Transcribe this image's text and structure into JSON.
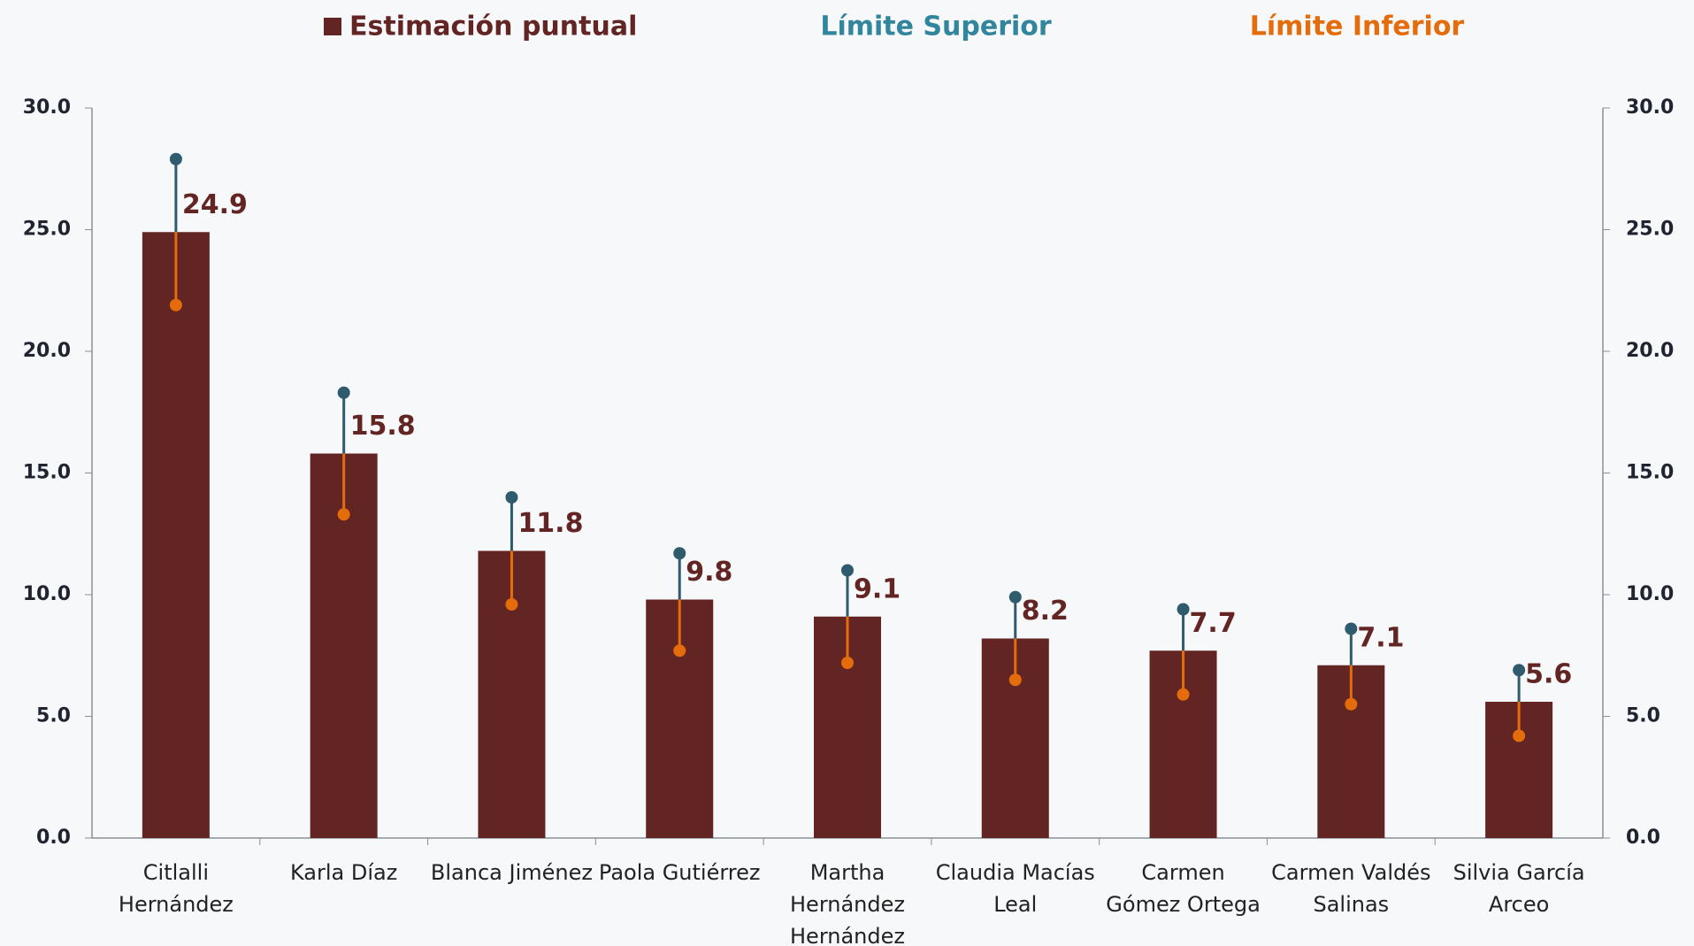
{
  "chart_data": {
    "type": "bar",
    "categories": [
      "Citlalli Hernández",
      "Karla Díaz",
      "Blanca Jiménez",
      "Paola Gutiérrez",
      "Martha Hernández Hernández",
      "Claudia Macías Leal",
      "Carmen Gómez Ortega",
      "Carmen Valdés Salinas",
      "Silvia García Arceo"
    ],
    "series": [
      {
        "name": "Estimación puntual",
        "color": "#632523",
        "values": [
          24.9,
          15.8,
          11.8,
          9.8,
          9.1,
          8.2,
          7.7,
          7.1,
          5.6
        ]
      },
      {
        "name": "Límite Superior",
        "color": "#31859c",
        "values": [
          27.9,
          18.3,
          14.0,
          11.7,
          11.0,
          9.9,
          9.4,
          8.6,
          6.9
        ]
      },
      {
        "name": "Límite Inferior",
        "color": "#e46c0a",
        "values": [
          21.9,
          13.3,
          9.6,
          7.7,
          7.2,
          6.5,
          5.9,
          5.5,
          4.2
        ]
      }
    ],
    "ylim": [
      0,
      30
    ],
    "yticks": [
      {
        "value": 0,
        "label": "0.0"
      },
      {
        "value": 5,
        "label": "5.0"
      },
      {
        "value": 10,
        "label": "10.0"
      },
      {
        "value": 15,
        "label": "15.0"
      },
      {
        "value": 20,
        "label": "20.0"
      },
      {
        "value": 25,
        "label": "25.0"
      },
      {
        "value": 30,
        "label": "30.0"
      }
    ],
    "y2lim": [
      0,
      30
    ],
    "y2ticks": [
      {
        "value": 0,
        "label": "0.0"
      },
      {
        "value": 5,
        "label": "5.0"
      },
      {
        "value": 10,
        "label": "10.0"
      },
      {
        "value": 15,
        "label": "15.0"
      },
      {
        "value": 20,
        "label": "20.0"
      },
      {
        "value": 25,
        "label": "25.0"
      },
      {
        "value": 30,
        "label": "30.0"
      }
    ]
  }
}
